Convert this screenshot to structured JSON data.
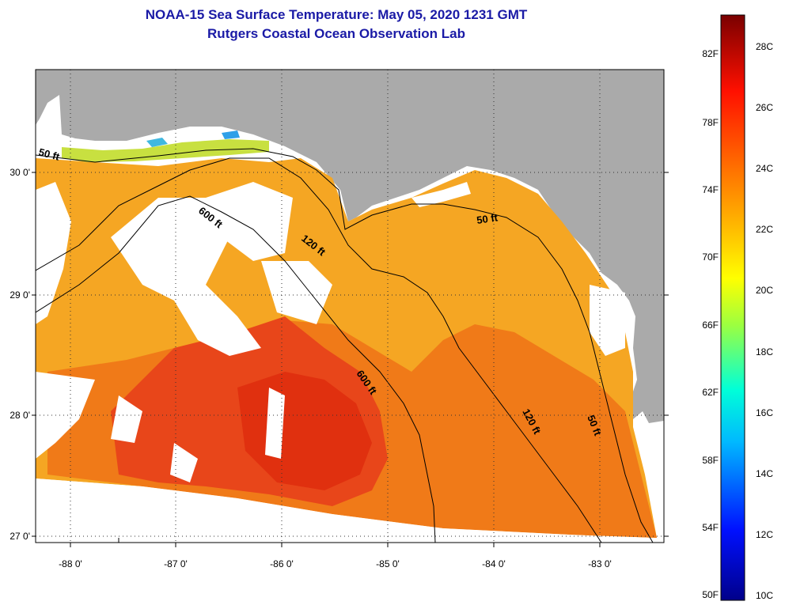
{
  "header": {
    "title": "NOAA-15 Sea Surface Temperature:  May 05, 2020 1231 GMT",
    "subtitle": "Rutgers Coastal Ocean Observation Lab"
  },
  "axes": {
    "lat_labels": [
      "30 0'",
      "29 0'",
      "28 0'",
      "27 0'"
    ],
    "lon_labels": [
      "-88 0'",
      "-87 0'",
      "-86 0'",
      "-85 0'",
      "-84 0'",
      "-83 0'"
    ]
  },
  "contours": {
    "c50_west": "50 ft",
    "c600_north": "600 ft",
    "c120_north": "120 ft",
    "c50_east": "50 ft",
    "c600_south": "600 ft",
    "c120_south": "120 ft",
    "c50_south": "50 ft"
  },
  "colorbar": {
    "f_labels": [
      "82F",
      "78F",
      "74F",
      "70F",
      "66F",
      "62F",
      "58F",
      "54F",
      "50F"
    ],
    "c_labels": [
      "28C",
      "26C",
      "24C",
      "22C",
      "20C",
      "18C",
      "16C",
      "14C",
      "12C",
      "10C"
    ],
    "min_c": 10,
    "max_c": 29.5
  },
  "colors": {
    "title": "#1a1aa6",
    "land": "#aaaaaa",
    "cloud": "#ffffff",
    "sst_warm": "#f07010",
    "sst_hot": "#e84010",
    "sst_mild": "#f5a020"
  }
}
